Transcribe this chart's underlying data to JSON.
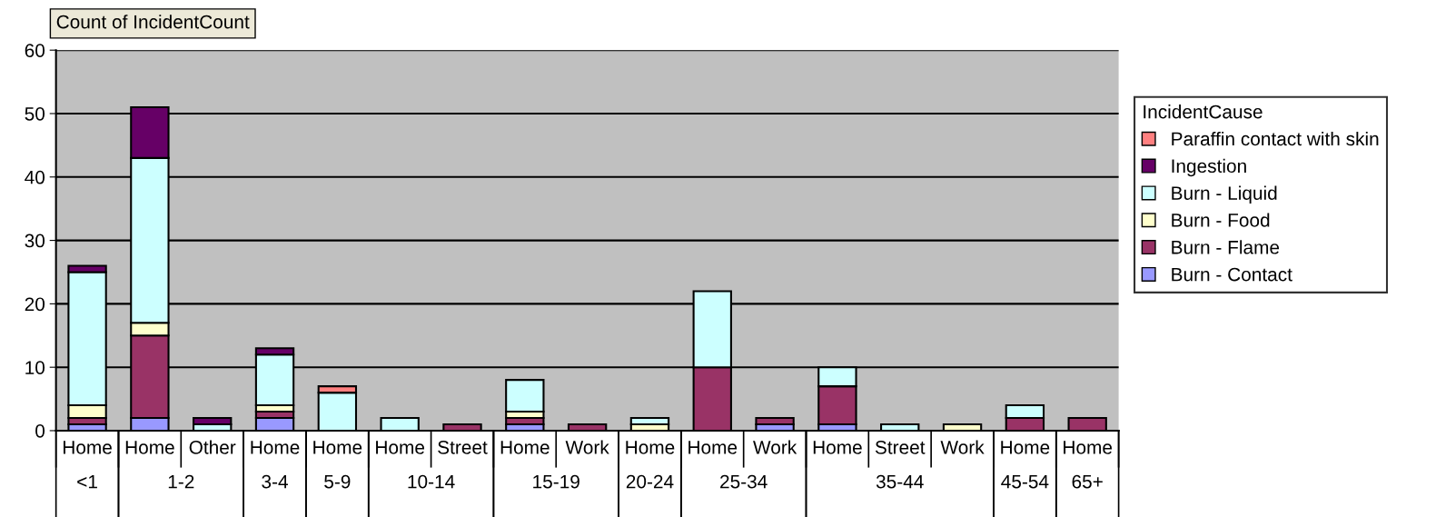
{
  "chart_data": {
    "type": "bar",
    "stacked": true,
    "title": "Count of IncidentCount",
    "legend_title": "IncidentCause",
    "legend": "right",
    "grid": "y",
    "categories": [
      "Home\n<1",
      "Home\n1-2",
      "Other",
      "Home\n3-4",
      "Home\n5-9",
      "Home\n10-14",
      "Street",
      "Home\n15-19",
      "Work",
      "Home\n20-24",
      "Home\n25-34",
      "Work",
      "Home\n35-44",
      "Street",
      "Work",
      "Home\n45-54",
      "Home\n65+"
    ],
    "ylim": [
      0,
      60
    ],
    "yticks": [
      0,
      10,
      20,
      30,
      40,
      50,
      60
    ],
    "series": [
      {
        "name": "Burn - Contact",
        "color": "#9999ff",
        "values": [
          1,
          2,
          null,
          2,
          null,
          null,
          null,
          1,
          null,
          null,
          null,
          1,
          1,
          null,
          null,
          null,
          null
        ]
      },
      {
        "name": "Burn - Flame",
        "color": "#993366",
        "values": [
          1,
          13,
          null,
          1,
          null,
          null,
          1,
          1,
          1,
          null,
          10,
          1,
          6,
          null,
          null,
          2,
          2
        ]
      },
      {
        "name": "Burn - Food",
        "color": "#ffffcc",
        "values": [
          2,
          2,
          null,
          1,
          null,
          null,
          null,
          1,
          null,
          1,
          null,
          null,
          null,
          null,
          1,
          null,
          null
        ]
      },
      {
        "name": "Burn - Liquid",
        "color": "#ccffff",
        "values": [
          21,
          26,
          1,
          8,
          6,
          2,
          null,
          5,
          null,
          1,
          12,
          null,
          3,
          1,
          null,
          2,
          null
        ]
      },
      {
        "name": "Ingestion",
        "color": "#660066",
        "values": [
          1,
          8,
          1,
          1,
          null,
          null,
          null,
          null,
          null,
          null,
          null,
          null,
          null,
          null,
          null,
          null,
          null
        ]
      },
      {
        "name": "Paraffin contact with skin",
        "color": "#ff8080",
        "values": [
          null,
          null,
          null,
          null,
          1,
          null,
          null,
          null,
          null,
          null,
          null,
          null,
          null,
          null,
          null,
          null,
          null
        ]
      }
    ]
  }
}
